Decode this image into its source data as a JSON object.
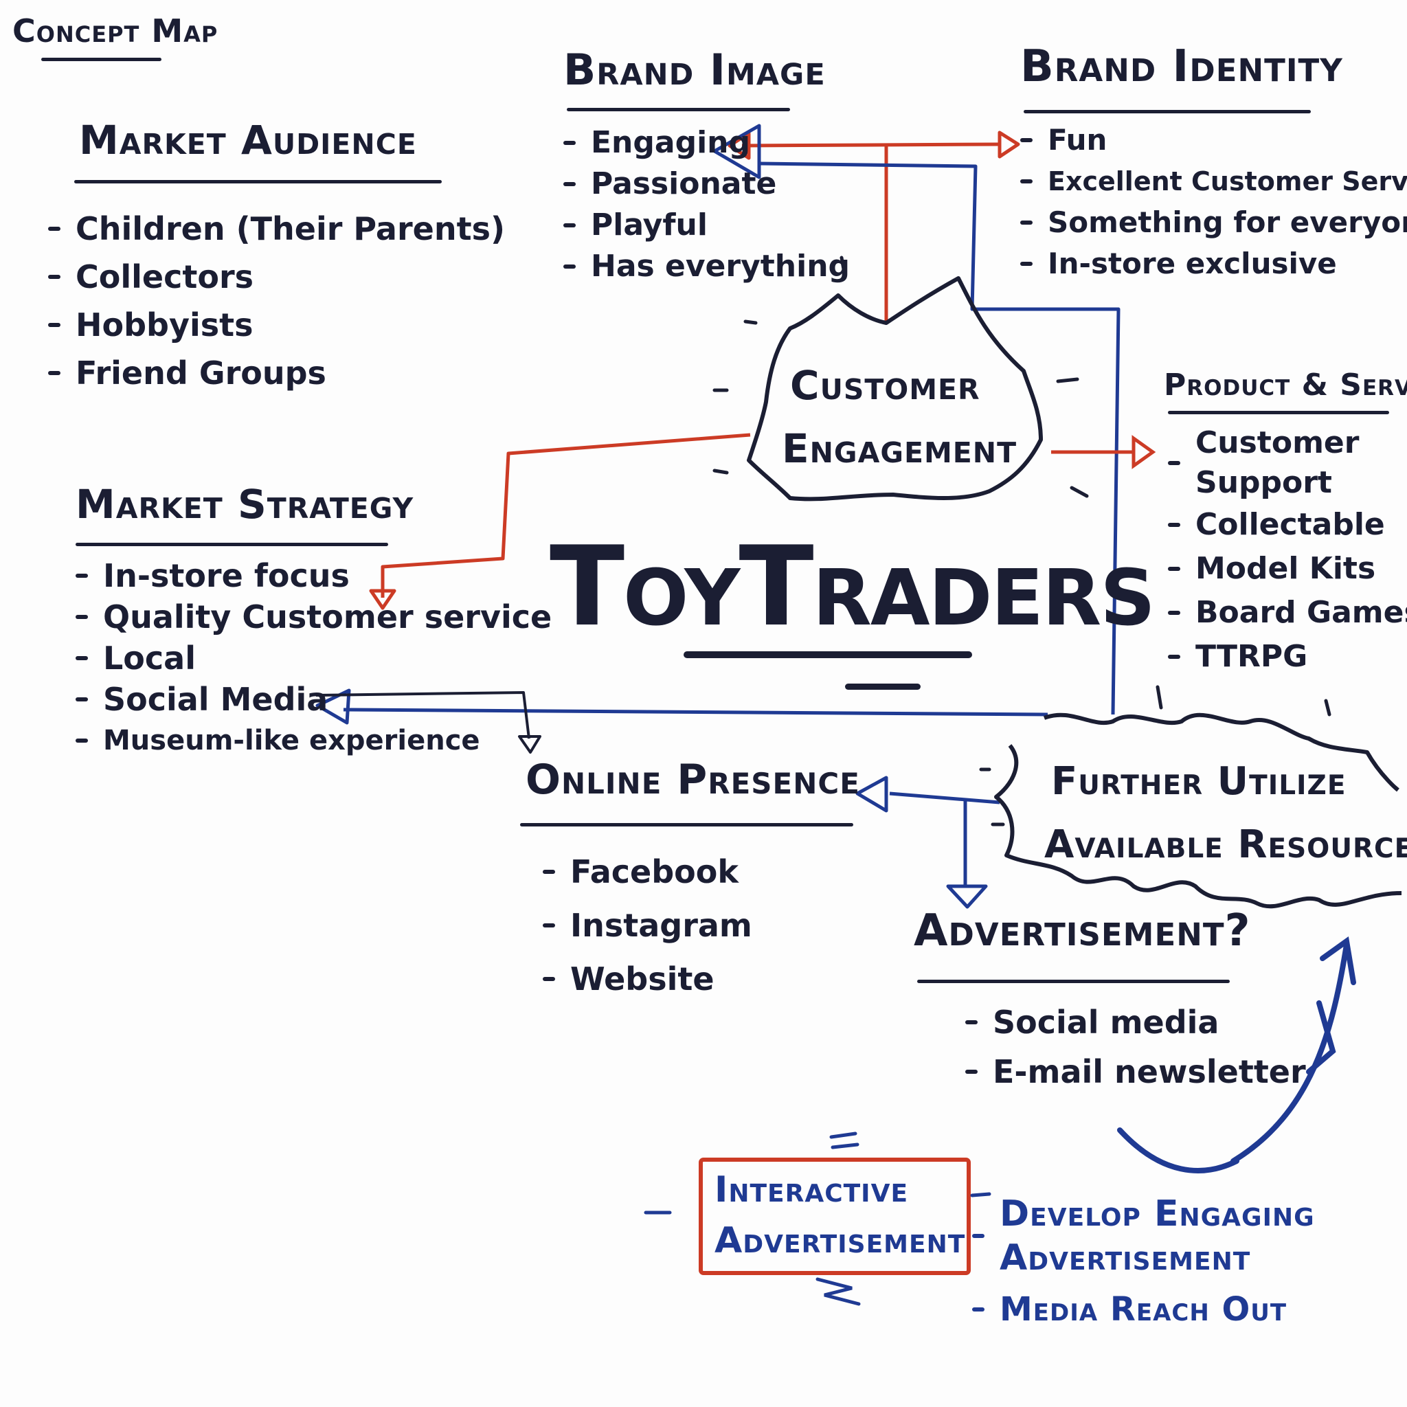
{
  "page_title": "Concept Map",
  "center": {
    "title": "ToyTraders",
    "hub": [
      "Customer",
      "Engagement"
    ]
  },
  "market_audience": {
    "title": "Market Audience",
    "items": [
      "Children (Their Parents)",
      "Collectors",
      "Hobbyists",
      "Friend Groups"
    ]
  },
  "market_strategy": {
    "title": "Market Strategy",
    "items": [
      "In-store focus",
      "Quality Customer service",
      "Local",
      "Social Media",
      "Museum-like experience"
    ]
  },
  "brand_image": {
    "title": "Brand Image",
    "items": [
      "Engaging",
      "Passionate",
      "Playful",
      "Has everything"
    ]
  },
  "brand_identity": {
    "title": "Brand Identity",
    "items": [
      "Fun",
      "Excellent Customer Service",
      "Something for everyone",
      "In-store exclusive"
    ]
  },
  "product_services": {
    "title": "Product & Services",
    "items": [
      "Customer Support",
      "Collectable",
      "Model Kits",
      "Board Games",
      "TTRPG"
    ]
  },
  "online_presence": {
    "title": "Online Presence",
    "items": [
      "Facebook",
      "Instagram",
      "Website"
    ]
  },
  "resources": {
    "lines": [
      "Further Utilize",
      "Available Resources"
    ]
  },
  "advertisement": {
    "title": "Advertisement?",
    "items": [
      "Social media",
      "E-mail newsletter"
    ]
  },
  "interactive_ad": {
    "lines": [
      "Interactive",
      "Advertisement"
    ]
  },
  "develop": {
    "items": [
      "Develop Engaging Advertisement",
      "Media Reach Out"
    ]
  },
  "colors": {
    "ink": "#1b1e33",
    "blue": "#1f3a93",
    "red": "#cc3b25",
    "background": "#fdfdfd"
  }
}
